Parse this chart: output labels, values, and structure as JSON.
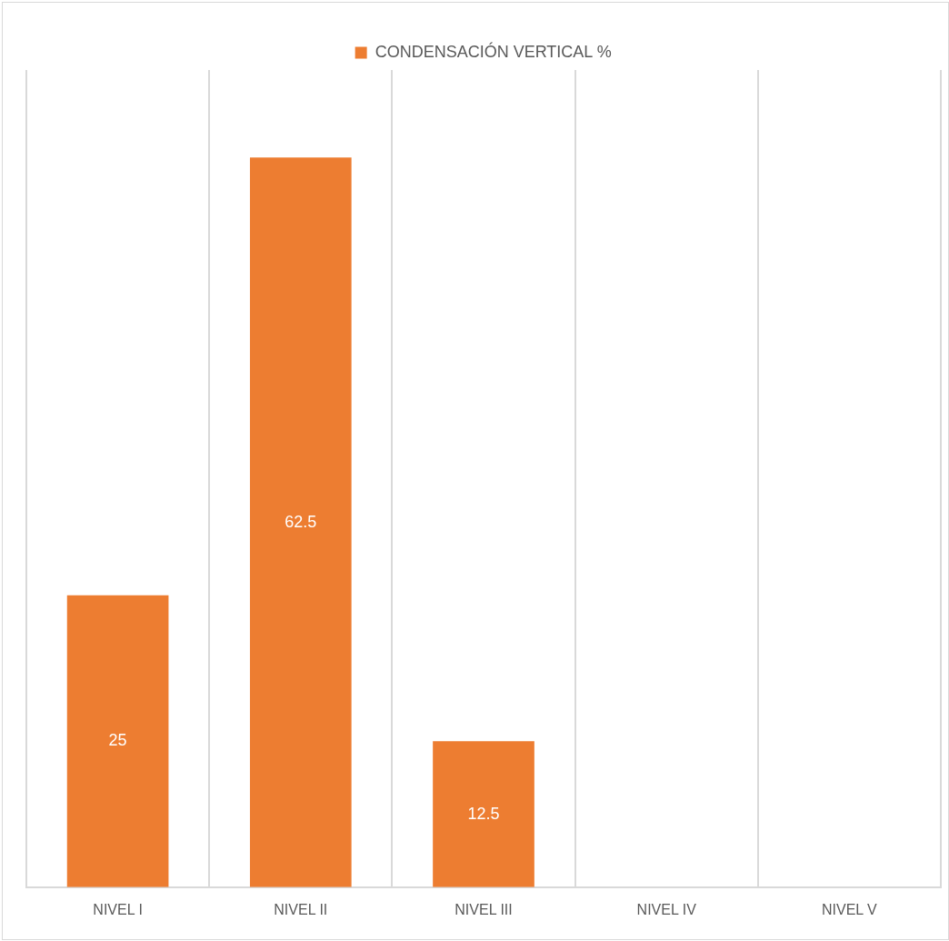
{
  "chart_data": {
    "type": "bar",
    "categories": [
      "NIVEL I",
      "NIVEL II",
      "NIVEL III",
      "NIVEL IV",
      "NIVEL V"
    ],
    "series": [
      {
        "name": "CONDENSACIÓN VERTICAL %",
        "color": "#ed7d31",
        "values": [
          25,
          62.5,
          12.5,
          0,
          0
        ],
        "value_labels": [
          "25",
          "62.5",
          "12.5",
          null,
          null
        ]
      }
    ],
    "ylim": [
      0,
      70
    ],
    "tick_labels": "x",
    "grid": "x",
    "legend": "top"
  }
}
